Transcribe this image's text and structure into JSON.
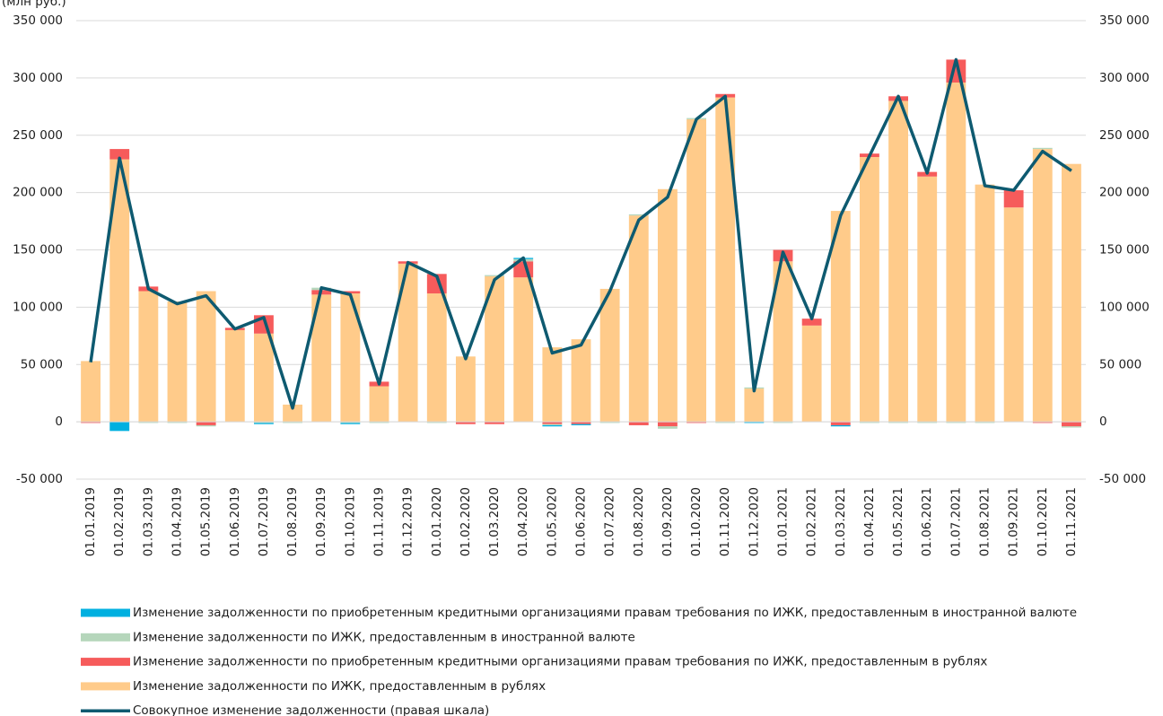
{
  "chart_data": {
    "type": "stacked-bar-line",
    "title": "(млн руб.)",
    "categories": [
      "01.01.2019",
      "01.02.2019",
      "01.03.2019",
      "01.04.2019",
      "01.05.2019",
      "01.06.2019",
      "01.07.2019",
      "01.08.2019",
      "01.09.2019",
      "01.10.2019",
      "01.11.2019",
      "01.12.2019",
      "01.01.2020",
      "01.02.2020",
      "01.03.2020",
      "01.04.2020",
      "01.05.2020",
      "01.06.2020",
      "01.07.2020",
      "01.08.2020",
      "01.09.2020",
      "01.10.2020",
      "01.11.2020",
      "01.12.2020",
      "01.01.2021",
      "01.02.2021",
      "01.03.2021",
      "01.04.2021",
      "01.05.2021",
      "01.06.2021",
      "01.07.2021",
      "01.08.2021",
      "01.09.2021",
      "01.10.2021",
      "01.11.2021"
    ],
    "series": [
      {
        "name": "Изменение задолженности по приобретенным кредитными организациями правам требования по ИЖК, предоставленным в иностранной валюте",
        "color": "#00b0e0",
        "kind": "bar",
        "values": [
          0,
          -8000,
          0,
          0,
          0,
          0,
          -1000,
          0,
          0,
          -1000,
          0,
          0,
          0,
          0,
          0,
          1000,
          -1000,
          -1000,
          0,
          0,
          0,
          0,
          0,
          -1000,
          0,
          0,
          -1000,
          0,
          0,
          0,
          0,
          0,
          0,
          0,
          0
        ]
      },
      {
        "name": "Изменение задолженности по ИЖК, предоставленным в иностранной валюте",
        "color": "#b5d6bb",
        "kind": "bar",
        "values": [
          0,
          0,
          -1000,
          -1000,
          -1000,
          0,
          -1000,
          -1000,
          2000,
          -1000,
          -1000,
          0,
          -1000,
          0,
          1000,
          2000,
          -1000,
          0,
          -1000,
          1000,
          -2000,
          1000,
          -1000,
          1000,
          -1000,
          0,
          0,
          -1000,
          -1000,
          -1000,
          -1000,
          -1000,
          0,
          1000,
          -1000
        ]
      },
      {
        "name": "Изменение задолженности по приобретенным кредитными организациями правам требования по ИЖК, предоставленным в рублях",
        "color": "#f65b5b",
        "kind": "bar",
        "values": [
          -1000,
          9000,
          4000,
          0,
          -3000,
          2000,
          16000,
          0,
          4000,
          2000,
          4000,
          2000,
          17000,
          -2000,
          -2000,
          14000,
          -2000,
          -2000,
          0,
          -3000,
          -4000,
          -1000,
          3000,
          0,
          10000,
          6000,
          -3000,
          3000,
          4000,
          4000,
          20000,
          0,
          15000,
          -1000,
          -4000
        ]
      },
      {
        "name": "Изменение задолженности по ИЖК, предоставленным в рублях",
        "color": "#ffcb8a",
        "kind": "bar",
        "values": [
          53000,
          229000,
          114000,
          105000,
          114000,
          80000,
          77000,
          15000,
          111000,
          112000,
          31000,
          138000,
          112000,
          57000,
          127000,
          126000,
          65000,
          72000,
          116000,
          180000,
          203000,
          264000,
          283000,
          29000,
          140000,
          84000,
          184000,
          231000,
          280000,
          214000,
          296000,
          207000,
          187000,
          238000,
          225000
        ]
      },
      {
        "name": "Совокупное изменение задолженности (правая шкала)",
        "color": "#0e5a70",
        "kind": "line",
        "axis": "y2",
        "values": [
          52000,
          230000,
          116000,
          103000,
          110000,
          81000,
          91000,
          12000,
          117000,
          111000,
          33000,
          139000,
          127000,
          55000,
          124000,
          143000,
          60000,
          67000,
          114000,
          176000,
          196000,
          264000,
          284000,
          27000,
          148000,
          90000,
          180000,
          232000,
          284000,
          217000,
          316000,
          206000,
          202000,
          236000,
          219000
        ]
      }
    ],
    "ylim": [
      -50000,
      350000
    ],
    "yticks": [
      {
        "value": -50000,
        "label": "-50 000"
      },
      {
        "value": 0,
        "label": "0"
      },
      {
        "value": 50000,
        "label": "50 000"
      },
      {
        "value": 100000,
        "label": "100 000"
      },
      {
        "value": 150000,
        "label": "150 000"
      },
      {
        "value": 200000,
        "label": "200 000"
      },
      {
        "value": 250000,
        "label": "250 000"
      },
      {
        "value": 300000,
        "label": "300 000"
      },
      {
        "value": 350000,
        "label": "350 000"
      }
    ],
    "y2lim": [
      -50000,
      350000
    ],
    "y2ticks": [
      {
        "value": -50000,
        "label": "-50 000"
      },
      {
        "value": 0,
        "label": "0"
      },
      {
        "value": 50000,
        "label": "50 000"
      },
      {
        "value": 100000,
        "label": "100 000"
      },
      {
        "value": 150000,
        "label": "150 000"
      },
      {
        "value": 200000,
        "label": "200 000"
      },
      {
        "value": 250000,
        "label": "250 000"
      },
      {
        "value": 300000,
        "label": "300 000"
      },
      {
        "value": 350000,
        "label": "350 000"
      }
    ],
    "grid": true
  }
}
